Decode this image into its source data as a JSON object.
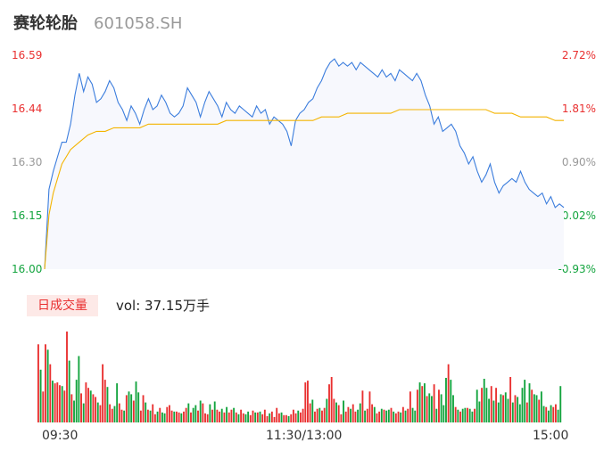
{
  "header": {
    "name": "赛轮轮胎",
    "code": "601058.SH"
  },
  "price_axis": {
    "left_labels": [
      "16.59",
      "16.44",
      "16.30",
      "16.15",
      "16.00"
    ],
    "right_labels": [
      "2.72%",
      "1.81%",
      "0.90%",
      "-0.02%",
      "-0.93%"
    ],
    "colors": [
      "#e93030",
      "#e93030",
      "#999999",
      "#13a43e",
      "#13a43e"
    ]
  },
  "volume": {
    "badge": "日成交量",
    "text": "vol: 37.15万手"
  },
  "time_axis": {
    "labels": [
      "09:30",
      "11:30/13:00",
      "15:00"
    ]
  },
  "chart_data": [
    {
      "type": "line",
      "ylim": [
        16.0,
        16.59
      ],
      "x_range": [
        0,
        240
      ],
      "series": [
        {
          "color": "#3b7ddd",
          "x": [
            0,
            2,
            4,
            6,
            8,
            10,
            12,
            14,
            16,
            18,
            20,
            22,
            24,
            26,
            28,
            30,
            32,
            34,
            36,
            38,
            40,
            42,
            44,
            46,
            48,
            50,
            52,
            54,
            56,
            58,
            60,
            62,
            64,
            66,
            68,
            70,
            72,
            74,
            76,
            78,
            80,
            82,
            84,
            86,
            88,
            90,
            92,
            94,
            96,
            98,
            100,
            102,
            104,
            106,
            108,
            110,
            112,
            114,
            116,
            118,
            120,
            122,
            124,
            126,
            128,
            130,
            132,
            134,
            136,
            138,
            140,
            142,
            144,
            146,
            148,
            150,
            152,
            154,
            156,
            158,
            160,
            162,
            164,
            166,
            168,
            170,
            172,
            174,
            176,
            178,
            180,
            182,
            184,
            186,
            188,
            190,
            192,
            194,
            196,
            198,
            200,
            202,
            204,
            206,
            208,
            210,
            212,
            214,
            216,
            218,
            220,
            222,
            224,
            226,
            228,
            230,
            232,
            234,
            236,
            238,
            240
          ],
          "values": [
            16.0,
            16.22,
            16.27,
            16.31,
            16.35,
            16.35,
            16.4,
            16.48,
            16.54,
            16.49,
            16.53,
            16.51,
            16.46,
            16.47,
            16.49,
            16.52,
            16.5,
            16.46,
            16.44,
            16.41,
            16.45,
            16.43,
            16.4,
            16.44,
            16.47,
            16.44,
            16.45,
            16.48,
            16.46,
            16.43,
            16.42,
            16.43,
            16.45,
            16.5,
            16.48,
            16.46,
            16.42,
            16.46,
            16.49,
            16.47,
            16.45,
            16.42,
            16.46,
            16.44,
            16.43,
            16.45,
            16.44,
            16.43,
            16.42,
            16.45,
            16.43,
            16.44,
            16.4,
            16.42,
            16.41,
            16.4,
            16.38,
            16.34,
            16.41,
            16.43,
            16.44,
            16.46,
            16.47,
            16.5,
            16.52,
            16.55,
            16.57,
            16.58,
            16.56,
            16.57,
            16.56,
            16.57,
            16.55,
            16.57,
            16.56,
            16.55,
            16.54,
            16.53,
            16.55,
            16.53,
            16.54,
            16.52,
            16.55,
            16.54,
            16.53,
            16.52,
            16.54,
            16.52,
            16.48,
            16.45,
            16.4,
            16.42,
            16.38,
            16.39,
            16.4,
            16.38,
            16.34,
            16.32,
            16.29,
            16.31,
            16.27,
            16.24,
            16.26,
            16.29,
            16.24,
            16.21,
            16.23,
            16.24,
            16.25,
            16.24,
            16.27,
            16.24,
            16.22,
            16.21,
            16.2,
            16.21,
            16.18,
            16.2,
            16.17,
            16.18,
            16.17
          ]
        },
        {
          "color": "#f4b400",
          "x": [
            0,
            2,
            4,
            6,
            8,
            10,
            12,
            16,
            20,
            24,
            28,
            32,
            36,
            40,
            44,
            48,
            52,
            56,
            60,
            64,
            68,
            72,
            76,
            80,
            84,
            88,
            92,
            96,
            100,
            104,
            108,
            112,
            116,
            120,
            124,
            128,
            132,
            136,
            140,
            144,
            148,
            152,
            156,
            160,
            164,
            168,
            172,
            176,
            180,
            184,
            188,
            192,
            196,
            200,
            204,
            208,
            212,
            216,
            220,
            224,
            228,
            232,
            236,
            240
          ],
          "values": [
            16.0,
            16.15,
            16.21,
            16.25,
            16.29,
            16.31,
            16.33,
            16.35,
            16.37,
            16.38,
            16.38,
            16.39,
            16.39,
            16.39,
            16.39,
            16.4,
            16.4,
            16.4,
            16.4,
            16.4,
            16.4,
            16.4,
            16.4,
            16.4,
            16.41,
            16.41,
            16.41,
            16.41,
            16.41,
            16.41,
            16.41,
            16.41,
            16.41,
            16.41,
            16.41,
            16.42,
            16.42,
            16.42,
            16.43,
            16.43,
            16.43,
            16.43,
            16.43,
            16.43,
            16.44,
            16.44,
            16.44,
            16.44,
            16.44,
            16.44,
            16.44,
            16.44,
            16.44,
            16.44,
            16.44,
            16.43,
            16.43,
            16.43,
            16.42,
            16.42,
            16.42,
            16.42,
            16.41,
            16.41
          ]
        }
      ]
    },
    {
      "type": "bar",
      "x_range": [
        0,
        240
      ],
      "ylim": [
        0,
        100
      ],
      "up_color": "#e93030",
      "down_color": "#13a43e",
      "values": [
        86,
        58,
        34,
        86,
        80,
        64,
        46,
        43,
        44,
        41,
        40,
        35,
        100,
        68,
        31,
        24,
        47,
        73,
        32,
        21,
        44,
        38,
        35,
        31,
        28,
        22,
        19,
        64,
        47,
        39,
        20,
        15,
        18,
        43,
        21,
        14,
        13,
        30,
        34,
        31,
        24,
        45,
        33,
        13,
        30,
        22,
        14,
        13,
        20,
        9,
        12,
        16,
        11,
        10,
        17,
        19,
        13,
        12,
        12,
        11,
        10,
        12,
        16,
        21,
        11,
        16,
        19,
        13,
        24,
        21,
        10,
        9,
        20,
        14,
        23,
        14,
        12,
        15,
        11,
        17,
        11,
        14,
        16,
        11,
        9,
        14,
        10,
        9,
        12,
        8,
        13,
        11,
        11,
        12,
        9,
        14,
        7,
        10,
        12,
        6,
        16,
        10,
        11,
        8,
        8,
        7,
        9,
        14,
        10,
        13,
        11,
        15,
        44,
        46,
        21,
        25,
        12,
        15,
        16,
        13,
        16,
        26,
        42,
        50,
        26,
        22,
        19,
        9,
        24,
        12,
        17,
        15,
        20,
        12,
        14,
        21,
        35,
        13,
        15,
        34,
        20,
        17,
        10,
        12,
        15,
        14,
        13,
        14,
        16,
        12,
        10,
        12,
        11,
        17,
        13,
        15,
        34,
        16,
        13,
        36,
        44,
        40,
        43,
        29,
        32,
        29,
        42,
        15,
        36,
        31,
        19,
        49,
        64,
        47,
        30,
        17,
        14,
        12,
        15,
        16,
        16,
        15,
        12,
        15,
        36,
        23,
        38,
        48,
        38,
        26,
        40,
        24,
        38,
        22,
        31,
        30,
        33,
        26,
        50,
        22,
        30,
        28,
        20,
        38,
        47,
        22,
        43,
        36,
        31,
        30,
        25,
        34,
        18,
        17,
        13,
        19,
        17,
        20,
        14,
        40
      ],
      "up": [
        1,
        0,
        1,
        1,
        0,
        1,
        0,
        1,
        1,
        1,
        0,
        1,
        1,
        0,
        1,
        0,
        0,
        0,
        1,
        0,
        1,
        1,
        0,
        1,
        1,
        0,
        1,
        1,
        1,
        0,
        1,
        1,
        0,
        0,
        1,
        1,
        0,
        1,
        0,
        0,
        1,
        0,
        0,
        1,
        1,
        0,
        1,
        0,
        1,
        1,
        0,
        1,
        0,
        0,
        1,
        1,
        1,
        0,
        1,
        1,
        0,
        1,
        1,
        0,
        1,
        0,
        0,
        1,
        0,
        1,
        1,
        1,
        0,
        1,
        0,
        1,
        1,
        0,
        1,
        0,
        1,
        1,
        0,
        1,
        0,
        1,
        1,
        0,
        0,
        1,
        1,
        0,
        1,
        0,
        1,
        1,
        1,
        0,
        1,
        1,
        1,
        1,
        0,
        1,
        1,
        0,
        1,
        1,
        1,
        0,
        1,
        1,
        1,
        1,
        1,
        0,
        1,
        1,
        0,
        1,
        1,
        0,
        1,
        1,
        1,
        0,
        1,
        1,
        0,
        1,
        1,
        0,
        1,
        1,
        0,
        0,
        1,
        0,
        1,
        1,
        1,
        0,
        1,
        1,
        0,
        1,
        0,
        0,
        1,
        0,
        1,
        1,
        0,
        1,
        0,
        1,
        1,
        0,
        0,
        1,
        0,
        1,
        0,
        1,
        0,
        0,
        1,
        0,
        1,
        0,
        0,
        0,
        1,
        0,
        0,
        1,
        0,
        1,
        0,
        0,
        1,
        0,
        0,
        1,
        0,
        0,
        1,
        0,
        0,
        0,
        1,
        0,
        1,
        0,
        0,
        1,
        0,
        0,
        1,
        0,
        1,
        0,
        0,
        0,
        0,
        1,
        0,
        1,
        0,
        0,
        1,
        0,
        0,
        1,
        0,
        0,
        1,
        1,
        0,
        0,
        1,
        0,
        1,
        0,
        1,
        1
      ]
    }
  ]
}
